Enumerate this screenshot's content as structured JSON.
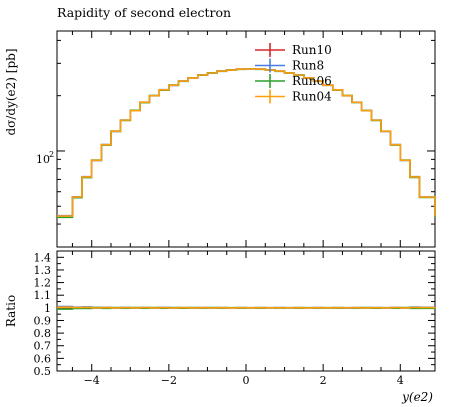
{
  "chart_data": [
    {
      "type": "line",
      "title": "Rapidity of second electron",
      "ylabel": "dσ/dy(e2) [pb]",
      "xlabel": "",
      "xlim": [
        -4.9,
        4.9
      ],
      "ylim": [
        30,
        450
      ],
      "yscale": "log",
      "ytick_labels": [
        {
          "value": 100,
          "label": "10"
        }
      ],
      "ytick_label_exponent": "2",
      "legend_position": "top-center",
      "step": true,
      "x_edges": [
        -4.9,
        -4.5,
        -4.25,
        -4.0,
        -3.75,
        -3.5,
        -3.25,
        -3.0,
        -2.75,
        -2.5,
        -2.25,
        -2.0,
        -1.75,
        -1.5,
        -1.25,
        -1.0,
        -0.75,
        -0.5,
        -0.25,
        0.0,
        0.25,
        0.5,
        0.75,
        1.0,
        1.25,
        1.5,
        1.75,
        2.0,
        2.25,
        2.5,
        2.75,
        3.0,
        3.25,
        3.5,
        3.75,
        4.0,
        4.25,
        4.5,
        4.9
      ],
      "series": [
        {
          "name": "Run10",
          "color": "#d62728",
          "values": [
            44,
            56,
            72,
            89,
            108,
            128,
            147,
            166,
            184,
            200,
            215,
            228,
            240,
            250,
            259,
            266,
            272,
            276,
            279,
            280,
            279,
            276,
            272,
            266,
            259,
            250,
            240,
            228,
            215,
            200,
            184,
            166,
            147,
            128,
            108,
            89,
            72,
            56,
            44
          ]
        },
        {
          "name": "Run8",
          "color": "#4a7ee0",
          "values": [
            44.4,
            56.3,
            72.5,
            88.7,
            108.4,
            127.7,
            147.4,
            165.6,
            184.5,
            199.6,
            215.6,
            227.5,
            240.6,
            249.6,
            259.5,
            265.6,
            272.6,
            275.6,
            279.5,
            279.7,
            279.6,
            275.7,
            272.5,
            265.7,
            259.4,
            249.7,
            240.5,
            227.6,
            215.4,
            199.7,
            184.4,
            165.7,
            147.3,
            127.8,
            108.3,
            88.8,
            72.4,
            56.2,
            44.3
          ]
        },
        {
          "name": "Run06",
          "color": "#2ca02c",
          "values": [
            43.5,
            55.7,
            71.6,
            89.3,
            107.6,
            128.3,
            146.5,
            166.4,
            183.5,
            200.4,
            214.4,
            228.4,
            239.4,
            250.4,
            258.5,
            266.4,
            271.4,
            276.4,
            278.5,
            280.3,
            278.4,
            276.3,
            271.5,
            266.3,
            258.6,
            250.3,
            239.5,
            228.3,
            214.6,
            200.3,
            183.6,
            166.3,
            146.6,
            128.2,
            107.7,
            89.2,
            71.7,
            55.8,
            43.6
          ]
        },
        {
          "name": "Run04",
          "color": "#ff9f0e",
          "values": [
            44.2,
            56.1,
            72.2,
            88.9,
            108.2,
            127.9,
            147.2,
            165.8,
            184.3,
            199.8,
            215.3,
            227.8,
            240.3,
            249.8,
            259.2,
            265.8,
            272.3,
            275.8,
            279.2,
            279.9,
            279.3,
            275.9,
            272.2,
            265.9,
            259.2,
            249.8,
            240.2,
            227.9,
            215.2,
            199.9,
            184.2,
            165.9,
            147.2,
            127.9,
            108.2,
            88.9,
            72.2,
            56.1,
            44.2
          ]
        }
      ]
    },
    {
      "type": "line",
      "title": "",
      "ylabel": "Ratio",
      "xlabel": "y(e2)",
      "xlim": [
        -4.9,
        4.9
      ],
      "ylim": [
        0.5,
        1.45
      ],
      "yticks": [
        0.5,
        0.6,
        0.7,
        0.8,
        0.9,
        1,
        1.1,
        1.2,
        1.3,
        1.4
      ],
      "xticks": [
        -4,
        -2,
        0,
        2,
        4
      ],
      "step": true,
      "series": [
        {
          "name": "Run10",
          "color": "#d62728",
          "values": [
            1.0,
            1.0,
            1.0,
            1.0,
            1.0,
            1.0,
            1.0,
            1.0,
            1.0,
            1.0,
            1.0,
            1.0,
            1.0,
            1.0,
            1.0,
            1.0,
            1.0,
            1.0,
            1.0,
            1.0,
            1.0,
            1.0,
            1.0,
            1.0,
            1.0,
            1.0,
            1.0,
            1.0,
            1.0,
            1.0,
            1.0,
            1.0,
            1.0,
            1.0,
            1.0,
            1.0,
            1.0,
            1.0,
            1.0
          ]
        },
        {
          "name": "Run8",
          "color": "#4a7ee0",
          "values": [
            1.01,
            1.005,
            1.007,
            0.997,
            1.004,
            0.998,
            1.003,
            0.998,
            1.003,
            0.998,
            1.003,
            0.998,
            1.002,
            0.998,
            1.002,
            0.998,
            1.002,
            0.999,
            1.002,
            0.999,
            1.002,
            0.999,
            1.002,
            0.999,
            1.002,
            0.999,
            1.002,
            0.998,
            1.002,
            0.998,
            1.002,
            0.998,
            1.002,
            0.998,
            1.003,
            0.998,
            1.006,
            1.004,
            1.007
          ]
        },
        {
          "name": "Run06",
          "color": "#2ca02c",
          "values": [
            0.99,
            0.995,
            0.995,
            1.003,
            0.996,
            1.002,
            0.997,
            1.002,
            0.997,
            1.002,
            0.997,
            1.002,
            0.997,
            1.002,
            0.998,
            1.002,
            0.998,
            1.001,
            0.998,
            1.001,
            0.998,
            1.001,
            0.998,
            1.001,
            0.998,
            1.001,
            0.998,
            1.001,
            0.998,
            1.001,
            0.998,
            1.002,
            0.997,
            1.001,
            0.997,
            1.002,
            0.996,
            0.996,
            0.991
          ]
        },
        {
          "name": "Run04",
          "color": "#ff9f0e",
          "values": [
            1.005,
            1.002,
            1.003,
            0.999,
            1.002,
            0.999,
            1.001,
            0.999,
            1.002,
            0.999,
            1.001,
            0.999,
            1.001,
            0.999,
            1.001,
            0.999,
            1.001,
            0.999,
            1.001,
            1.0,
            1.001,
            1.0,
            1.0,
            1.0,
            1.001,
            0.999,
            1.001,
            0.999,
            1.001,
            1.0,
            1.001,
            0.999,
            1.001,
            0.999,
            1.002,
            0.999,
            1.003,
            1.002,
            1.005
          ]
        }
      ]
    }
  ]
}
